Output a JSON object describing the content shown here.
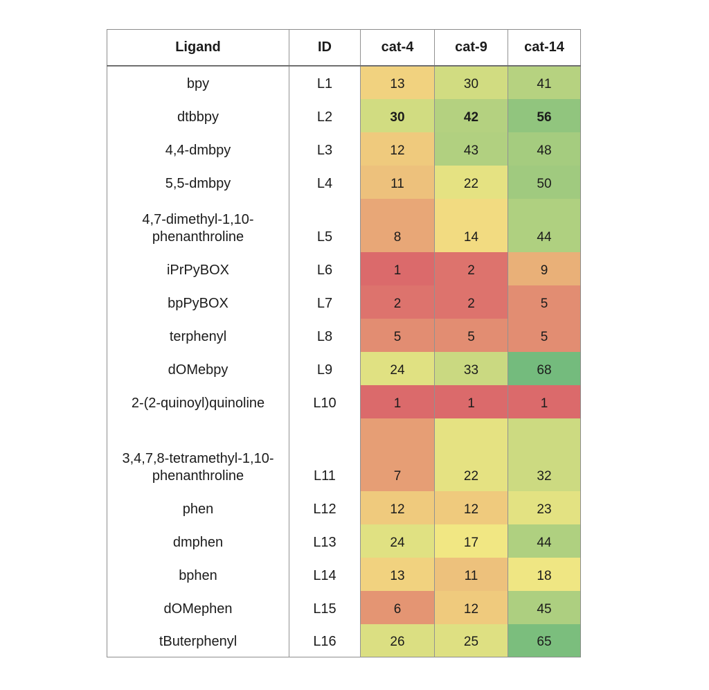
{
  "chart_data": {
    "type": "heatmap",
    "headers": [
      "Ligand",
      "ID",
      "cat-4",
      "cat-9",
      "cat-14"
    ],
    "value_columns": [
      "cat-4",
      "cat-9",
      "cat-14"
    ],
    "rows": [
      {
        "ligand": "bpy",
        "id": "L1",
        "values": [
          13,
          30,
          41
        ],
        "colors": [
          "#F1D27F",
          "#D1DC81",
          "#B6D280"
        ],
        "bold": false
      },
      {
        "ligand": "dtbbpy",
        "id": "L2",
        "values": [
          30,
          42,
          56
        ],
        "colors": [
          "#D1DC81",
          "#B4D180",
          "#91C57E"
        ],
        "bold": true
      },
      {
        "ligand": "4,4-dmbpy",
        "id": "L3",
        "values": [
          12,
          43,
          48
        ],
        "colors": [
          "#EFCA7D",
          "#B1D080",
          "#A5CC7F"
        ],
        "bold": false
      },
      {
        "ligand": "5,5-dmbpy",
        "id": "L4",
        "values": [
          11,
          22,
          50
        ],
        "colors": [
          "#EDC17C",
          "#E5E282",
          "#A0CA7F"
        ],
        "bold": false
      },
      {
        "ligand": "4,7-dimethyl-1,10-phenanthroline",
        "id": "L5",
        "values": [
          8,
          14,
          44
        ],
        "colors": [
          "#E8A777",
          "#F2DB81",
          "#AFD080"
        ],
        "bold": false
      },
      {
        "ligand": "iPrPyBOX",
        "id": "L6",
        "values": [
          1,
          2,
          9
        ],
        "colors": [
          "#DB6A6B",
          "#DD736D",
          "#E9B078"
        ],
        "bold": false
      },
      {
        "ligand": "bpPyBOX",
        "id": "L7",
        "values": [
          2,
          2,
          5
        ],
        "colors": [
          "#DD736D",
          "#DD736D",
          "#E28D72"
        ],
        "bold": false
      },
      {
        "ligand": "terphenyl",
        "id": "L8",
        "values": [
          5,
          5,
          5
        ],
        "colors": [
          "#E28D72",
          "#E28D72",
          "#E28D72"
        ],
        "bold": false
      },
      {
        "ligand": "dOMebpy",
        "id": "L9",
        "values": [
          24,
          33,
          68
        ],
        "colors": [
          "#E0E182",
          "#CAD981",
          "#74BB7D"
        ],
        "bold": false
      },
      {
        "ligand": "2-(2-quinoyl)quinoline",
        "id": "L10",
        "values": [
          1,
          1,
          1
        ],
        "colors": [
          "#DB6A6B",
          "#DB6A6B",
          "#DB6A6B"
        ],
        "bold": false
      },
      {
        "ligand": "3,4,7,8-tetramethyl-1,10-phenanthroline",
        "id": "L11",
        "values": [
          7,
          22,
          32
        ],
        "colors": [
          "#E69E75",
          "#E5E282",
          "#CCDA81"
        ],
        "bold": false
      },
      {
        "ligand": "phen",
        "id": "L12",
        "values": [
          12,
          12,
          23
        ],
        "colors": [
          "#EFCA7D",
          "#EFCA7D",
          "#E3E282"
        ],
        "bold": false
      },
      {
        "ligand": "dmphen",
        "id": "L13",
        "values": [
          24,
          17,
          44
        ],
        "colors": [
          "#E0E182",
          "#F1E783",
          "#AFD080"
        ],
        "bold": false
      },
      {
        "ligand": "bphen",
        "id": "L14",
        "values": [
          13,
          11,
          18
        ],
        "colors": [
          "#F1D27F",
          "#EDC17C",
          "#EFE683"
        ],
        "bold": false
      },
      {
        "ligand": "dOMephen",
        "id": "L15",
        "values": [
          6,
          12,
          45
        ],
        "colors": [
          "#E49573",
          "#EFCA7D",
          "#ADCF80"
        ],
        "bold": false
      },
      {
        "ligand": "tButerphenyl",
        "id": "L16",
        "values": [
          26,
          25,
          65
        ],
        "colors": [
          "#DBDF82",
          "#DEE082",
          "#7BBE7D"
        ],
        "bold": false
      }
    ],
    "color_scale": {
      "min_value": 1,
      "min_color": "#DB6A6B",
      "mid_value": 15.5,
      "mid_color": "#F5E883",
      "max_value": 68,
      "max_color": "#74BB7D"
    },
    "legend_position": "none",
    "grid": "vertical-only"
  }
}
